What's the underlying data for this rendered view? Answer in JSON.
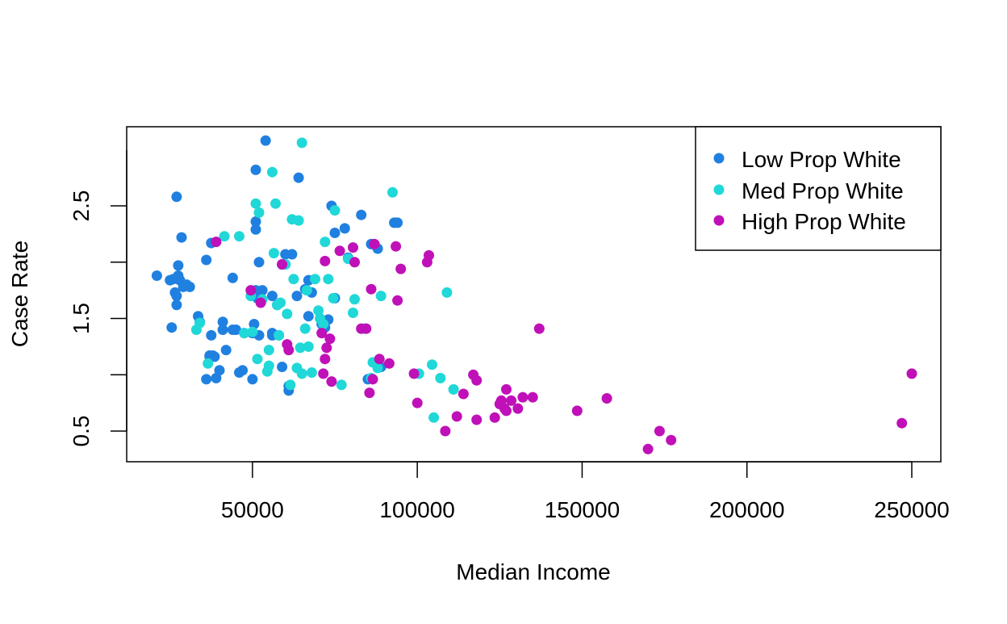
{
  "chart_data": {
    "type": "scatter",
    "title": "",
    "xlabel": "Median Income",
    "ylabel": "Case Rate",
    "xlim": [
      20000,
      250000
    ],
    "ylim": [
      0.33,
      3.08
    ],
    "x_ticks": [
      50000,
      100000,
      150000,
      200000,
      250000
    ],
    "x_tick_labels": [
      "50000",
      "100000",
      "150000",
      "200000",
      "250000"
    ],
    "y_ticks": [
      0.5,
      1.0,
      1.5,
      2.0,
      2.5
    ],
    "y_tick_labels": [
      "0.5",
      "",
      "1.5",
      "",
      "2.5"
    ],
    "grid": false,
    "legend": {
      "placement": "top-right"
    },
    "series": [
      {
        "name": "Low Prop White",
        "color": "#2080e0",
        "x": [
          21000,
          25000,
          25500,
          26500,
          27000,
          27000,
          27500,
          27500,
          28000,
          28500,
          29000,
          30000,
          31000,
          36000,
          37000,
          37500,
          37500,
          27000,
          26000,
          33500,
          34000,
          36000,
          37000,
          38500,
          39000,
          40000,
          41000,
          42000,
          44000,
          44000,
          45000,
          47000,
          46000,
          50500,
          50000,
          51000,
          51000,
          52000,
          51000,
          51500,
          52000,
          51000,
          54000,
          56000,
          56000,
          59000,
          59000,
          61000,
          62000,
          61000,
          64000,
          63500,
          66000,
          67000,
          67000,
          68000,
          71000,
          72000,
          73000,
          74000,
          75000,
          75000,
          78000,
          79000,
          83000,
          85000,
          86000,
          88000,
          89000,
          93000,
          94000,
          56000,
          38000,
          41000,
          57500,
          47500,
          58000,
          50000,
          53000,
          60000
        ],
        "y": [
          1.88,
          1.84,
          1.42,
          1.73,
          1.62,
          1.7,
          1.88,
          1.97,
          1.84,
          2.22,
          1.78,
          1.8,
          1.78,
          0.96,
          1.17,
          1.35,
          2.17,
          2.58,
          1.85,
          1.52,
          1.47,
          2.02,
          1.16,
          1.16,
          0.97,
          1.04,
          1.4,
          1.22,
          1.4,
          1.86,
          1.4,
          1.04,
          1.02,
          1.45,
          1.37,
          2.36,
          2.29,
          1.35,
          1.75,
          1.68,
          2.0,
          2.82,
          3.08,
          1.7,
          1.37,
          1.07,
          1.98,
          0.86,
          2.07,
          0.9,
          2.75,
          1.7,
          1.76,
          1.84,
          1.52,
          1.73,
          1.45,
          1.42,
          1.49,
          2.5,
          2.26,
          1.68,
          2.3,
          2.04,
          2.42,
          0.96,
          2.16,
          2.12,
          1.07,
          2.35,
          2.35,
          1.35,
          1.17,
          1.47,
          1.62,
          1.37,
          1.35,
          0.96,
          1.75,
          2.07
        ]
      },
      {
        "name": "Med Prop White",
        "color": "#20d8d8",
        "x": [
          33000,
          34000,
          36500,
          41500,
          46000,
          47500,
          49500,
          50000,
          51000,
          51500,
          52000,
          53000,
          54500,
          55000,
          56000,
          56500,
          57000,
          57500,
          58000,
          58500,
          60000,
          60500,
          61500,
          62000,
          62500,
          63500,
          64000,
          64500,
          65000,
          66000,
          66500,
          67000,
          68000,
          69000,
          70000,
          71500,
          72000,
          73000,
          74500,
          75000,
          77000,
          79000,
          80500,
          81000,
          84000,
          86000,
          86500,
          88000,
          89000,
          92500,
          100500,
          104500,
          105000,
          107000,
          109000,
          111000,
          60000,
          55000,
          70500,
          65000
        ],
        "y": [
          1.4,
          1.46,
          1.1,
          2.23,
          2.23,
          1.37,
          1.7,
          1.38,
          2.52,
          1.14,
          2.44,
          1.67,
          1.03,
          1.08,
          2.8,
          2.08,
          2.52,
          1.62,
          1.35,
          1.64,
          1.98,
          1.54,
          0.91,
          2.38,
          1.85,
          1.06,
          2.37,
          1.24,
          3.06,
          1.41,
          1.75,
          1.25,
          1.02,
          1.85,
          1.57,
          1.45,
          2.18,
          1.85,
          1.68,
          2.46,
          0.91,
          2.03,
          1.55,
          1.67,
          1.41,
          0.97,
          1.11,
          1.06,
          1.7,
          2.62,
          1.01,
          1.09,
          0.62,
          0.97,
          1.73,
          0.87,
          1.98,
          1.22,
          1.5,
          1.01
        ]
      },
      {
        "name": "High Prop White",
        "color": "#c010b8",
        "x": [
          39000,
          49500,
          52500,
          59000,
          60500,
          61000,
          71000,
          71500,
          72000,
          72000,
          72500,
          73500,
          74000,
          76500,
          80500,
          81000,
          83000,
          84500,
          85500,
          86000,
          86500,
          87000,
          88500,
          91500,
          93500,
          94000,
          95000,
          99000,
          100000,
          103000,
          103500,
          108500,
          112000,
          114000,
          117000,
          118000,
          118000,
          123500,
          125000,
          125500,
          126500,
          127000,
          127000,
          128500,
          130500,
          132000,
          135000,
          137000,
          148500,
          157500,
          170000,
          173500,
          177000,
          247000,
          250000
        ],
        "y": [
          2.18,
          1.75,
          1.64,
          1.98,
          1.27,
          1.22,
          1.37,
          1.01,
          2.01,
          1.14,
          1.24,
          1.32,
          0.94,
          2.1,
          2.13,
          2.0,
          1.41,
          1.41,
          0.84,
          1.76,
          0.96,
          2.16,
          1.14,
          1.1,
          2.14,
          1.66,
          1.94,
          1.01,
          0.75,
          2.0,
          2.06,
          0.5,
          0.63,
          0.83,
          1.0,
          0.95,
          0.6,
          0.62,
          0.74,
          0.77,
          0.7,
          0.68,
          0.87,
          0.77,
          0.7,
          0.8,
          0.8,
          1.41,
          0.68,
          0.79,
          0.34,
          0.5,
          0.42,
          0.57,
          1.01
        ]
      }
    ]
  }
}
